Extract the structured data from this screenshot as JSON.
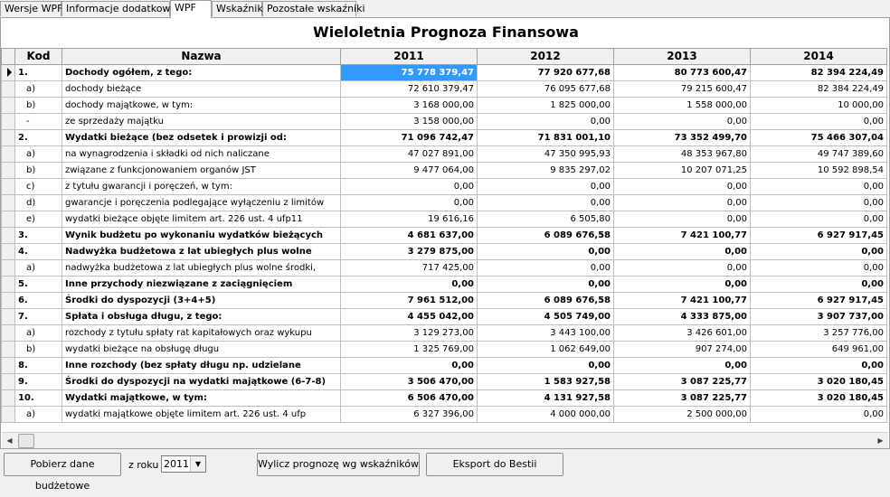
{
  "tabs": [
    "Wersje WPF",
    "Informacje dodatkowe",
    "WPF",
    "Wskaźniki",
    "Pozostałe wskaźniki"
  ],
  "title": "Wieloletnia Prognoza Finansowa",
  "columns": [
    "Kod",
    "Nazwa",
    "2011",
    "2012",
    "2013",
    "2014"
  ],
  "rows": [
    {
      "code": "1.",
      "name": "Dochody ogółem, z tego:",
      "v": [
        "75 778 379,47",
        "77 920 677,68",
        "80 773 600,47",
        "82 394 224,49"
      ],
      "bold": true,
      "current": true
    },
    {
      "code": "a)",
      "name": "dochody bieżące",
      "v": [
        "72 610 379,47",
        "76 095 677,68",
        "79 215 600,47",
        "82 384 224,49"
      ],
      "bold": false
    },
    {
      "code": "b)",
      "name": "dochody majątkowe, w tym:",
      "v": [
        "3 168 000,00",
        "1 825 000,00",
        "1 558 000,00",
        "10 000,00"
      ],
      "bold": false
    },
    {
      "code": "-",
      "name": "ze sprzedaży majątku",
      "v": [
        "3 158 000,00",
        "0,00",
        "0,00",
        "0,00"
      ],
      "bold": false
    },
    {
      "code": "2.",
      "name": "Wydatki bieżące  (bez odsetek i prowizji od:",
      "v": [
        "71 096 742,47",
        "71 831 001,10",
        "73 352 499,70",
        "75 466 307,04"
      ],
      "bold": true
    },
    {
      "code": "a)",
      "name": "na wynagrodzenia i składki od nich naliczane",
      "v": [
        "47 027 891,00",
        "47 350 995,93",
        "48 353 967,80",
        "49 747 389,60"
      ],
      "bold": false
    },
    {
      "code": "b)",
      "name": "związane z funkcjonowaniem organów JST",
      "v": [
        "9 477 064,00",
        "9 835 297,02",
        "10 207 071,25",
        "10 592 898,54"
      ],
      "bold": false
    },
    {
      "code": "c)",
      "name": "z tytułu gwarancji i poręczeń, w tym:",
      "v": [
        "0,00",
        "0,00",
        "0,00",
        "0,00"
      ],
      "bold": false
    },
    {
      "code": "d)",
      "name": "gwarancje i poręczenia podlegające wyłączeniu z limitów",
      "v": [
        "0,00",
        "0,00",
        "0,00",
        "0,00"
      ],
      "bold": false
    },
    {
      "code": "e)",
      "name": "wydatki bieżące objęte limitem art. 226 ust. 4 ufp11",
      "v": [
        "19 616,16",
        "6 505,80",
        "0,00",
        "0,00"
      ],
      "bold": false
    },
    {
      "code": "3.",
      "name": "Wynik budżetu po wykonaniu wydatków bieżących",
      "v": [
        "4 681 637,00",
        "6 089 676,58",
        "7 421 100,77",
        "6 927 917,45"
      ],
      "bold": true
    },
    {
      "code": "4.",
      "name": "Nadwyżka budżetowa z lat ubiegłych plus wolne",
      "v": [
        "3 279 875,00",
        "0,00",
        "0,00",
        "0,00"
      ],
      "bold": true
    },
    {
      "code": "a)",
      "name": "nadwyżka budżetowa z lat ubiegłych plus wolne środki,",
      "v": [
        "717 425,00",
        "0,00",
        "0,00",
        "0,00"
      ],
      "bold": false
    },
    {
      "code": "5.",
      "name": "Inne przychody niezwiązane z zaciągnięciem",
      "v": [
        "0,00",
        "0,00",
        "0,00",
        "0,00"
      ],
      "bold": true
    },
    {
      "code": "6.",
      "name": "Środki do dyspozycji (3+4+5)",
      "v": [
        "7 961 512,00",
        "6 089 676,58",
        "7 421 100,77",
        "6 927 917,45"
      ],
      "bold": true
    },
    {
      "code": "7.",
      "name": "Spłata i obsługa długu, z tego:",
      "v": [
        "4 455 042,00",
        "4 505 749,00",
        "4 333 875,00",
        "3 907 737,00"
      ],
      "bold": true
    },
    {
      "code": "a)",
      "name": "rozchody z tytułu spłaty rat kapitałowych oraz wykupu",
      "v": [
        "3 129 273,00",
        "3 443 100,00",
        "3 426 601,00",
        "3 257 776,00"
      ],
      "bold": false
    },
    {
      "code": "b)",
      "name": "wydatki bieżące na obsługę długu",
      "v": [
        "1 325 769,00",
        "1 062 649,00",
        "907 274,00",
        "649 961,00"
      ],
      "bold": false
    },
    {
      "code": "8.",
      "name": "Inne rozchody (bez spłaty długu np. udzielane",
      "v": [
        "0,00",
        "0,00",
        "0,00",
        "0,00"
      ],
      "bold": true
    },
    {
      "code": "9.",
      "name": "Środki do dyspozycji na wydatki majątkowe (6-7-8)",
      "v": [
        "3 506 470,00",
        "1 583 927,58",
        "3 087 225,77",
        "3 020 180,45"
      ],
      "bold": true
    },
    {
      "code": "10.",
      "name": "Wydatki majątkowe, w tym:",
      "v": [
        "6 506 470,00",
        "4 131 927,58",
        "3 087 225,77",
        "3 020 180,45"
      ],
      "bold": true
    },
    {
      "code": "a)",
      "name": "wydatki majątkowe objęte limitem art. 226 ust. 4 ufp",
      "v": [
        "6 327 396,00",
        "4 000 000,00",
        "2 500 000,00",
        "0,00"
      ],
      "bold": false
    }
  ],
  "bottom": {
    "fetch_button": "Pobierz dane budżetowe",
    "year_label": "z roku",
    "year_value": "2011",
    "calc_button": "Wylicz prognozę wg wskaźników",
    "export_button": "Eksport do Bestii"
  }
}
